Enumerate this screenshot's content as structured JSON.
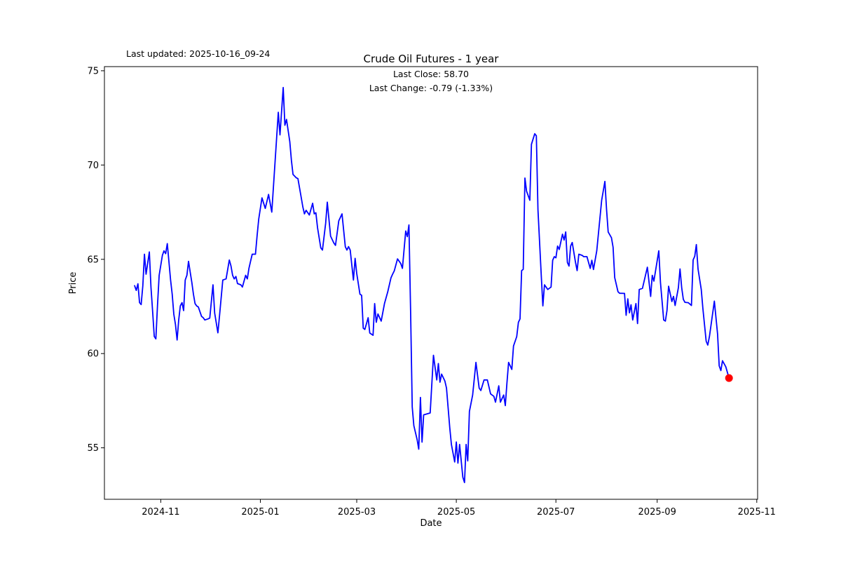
{
  "chart_data": {
    "type": "line",
    "title": "Crude Oil Futures - 1 year",
    "xlabel": "Date",
    "ylabel": "Price",
    "annotations": {
      "last_updated": "Last updated: 2025-10-16_09-24",
      "subtitle_line1": "Last Close: 58.70",
      "subtitle_line2": "Last Change: -0.79 (-1.33%)"
    },
    "last_close": 58.7,
    "last_change_abs": -0.79,
    "last_change_pct": "-1.33%",
    "line_color": "#0000ff",
    "marker_color": "#ff0000",
    "grid": false,
    "legend": null,
    "y_ticks": [
      55,
      60,
      65,
      70,
      75
    ],
    "x_ticks": [
      {
        "label": "2024-11",
        "date": "2024-11-01"
      },
      {
        "label": "2025-01",
        "date": "2025-01-01"
      },
      {
        "label": "2025-03",
        "date": "2025-03-01"
      },
      {
        "label": "2025-05",
        "date": "2025-05-01"
      },
      {
        "label": "2025-07",
        "date": "2025-07-01"
      },
      {
        "label": "2025-09",
        "date": "2025-09-01"
      },
      {
        "label": "2025-11",
        "date": "2025-11-01"
      }
    ],
    "xlim": [
      "2024-09-27",
      "2025-11-01"
    ],
    "ylim": [
      52.27,
      75.22
    ],
    "last_point": {
      "date": "2025-10-15",
      "value": 58.7
    },
    "series": [
      {
        "name": "Crude Oil Futures",
        "points": [
          [
            "2024-10-16",
            63.6
          ],
          [
            "2024-10-17",
            63.35
          ],
          [
            "2024-10-18",
            63.7
          ],
          [
            "2024-10-19",
            62.7
          ],
          [
            "2024-10-20",
            62.6
          ],
          [
            "2024-10-21",
            63.6
          ],
          [
            "2024-10-22",
            65.27
          ],
          [
            "2024-10-23",
            64.21
          ],
          [
            "2024-10-25",
            65.39
          ],
          [
            "2024-10-26",
            63.53
          ],
          [
            "2024-10-27",
            62.28
          ],
          [
            "2024-10-28",
            60.91
          ],
          [
            "2024-10-29",
            60.78
          ],
          [
            "2024-10-30",
            62.53
          ],
          [
            "2024-10-31",
            64.15
          ],
          [
            "2024-11-02",
            65.21
          ],
          [
            "2024-11-03",
            65.45
          ],
          [
            "2024-11-04",
            65.3
          ],
          [
            "2024-11-05",
            65.83
          ],
          [
            "2024-11-06",
            64.89
          ],
          [
            "2024-11-07",
            63.9
          ],
          [
            "2024-11-08",
            63.15
          ],
          [
            "2024-11-09",
            62.09
          ],
          [
            "2024-11-10",
            61.53
          ],
          [
            "2024-11-11",
            60.72
          ],
          [
            "2024-11-12",
            61.78
          ],
          [
            "2024-11-13",
            62.53
          ],
          [
            "2024-11-14",
            62.7
          ],
          [
            "2024-11-15",
            62.28
          ],
          [
            "2024-11-16",
            63.9
          ],
          [
            "2024-11-17",
            64.15
          ],
          [
            "2024-11-18",
            64.89
          ],
          [
            "2024-11-19",
            64.34
          ],
          [
            "2024-11-20",
            63.78
          ],
          [
            "2024-11-21",
            63.15
          ],
          [
            "2024-11-22",
            62.65
          ],
          [
            "2024-11-23",
            62.53
          ],
          [
            "2024-11-24",
            62.47
          ],
          [
            "2024-11-26",
            61.97
          ],
          [
            "2024-11-27",
            61.9
          ],
          [
            "2024-11-28",
            61.78
          ],
          [
            "2024-11-30",
            61.84
          ],
          [
            "2024-12-01",
            61.88
          ],
          [
            "2024-12-03",
            63.65
          ],
          [
            "2024-12-04",
            62.15
          ],
          [
            "2024-12-06",
            61.1
          ],
          [
            "2024-12-07",
            62.03
          ],
          [
            "2024-12-09",
            63.9
          ],
          [
            "2024-12-11",
            63.96
          ],
          [
            "2024-12-13",
            64.96
          ],
          [
            "2024-12-14",
            64.64
          ],
          [
            "2024-12-15",
            64.15
          ],
          [
            "2024-12-16",
            63.96
          ],
          [
            "2024-12-17",
            64.09
          ],
          [
            "2024-12-18",
            63.71
          ],
          [
            "2024-12-20",
            63.65
          ],
          [
            "2024-12-21",
            63.53
          ],
          [
            "2024-12-23",
            64.15
          ],
          [
            "2024-12-24",
            63.96
          ],
          [
            "2024-12-25",
            64.52
          ],
          [
            "2024-12-26",
            64.89
          ],
          [
            "2024-12-27",
            65.27
          ],
          [
            "2024-12-29",
            65.27
          ],
          [
            "2024-12-30",
            66.27
          ],
          [
            "2024-12-31",
            67.14
          ],
          [
            "2025-01-02",
            68.26
          ],
          [
            "2025-01-04",
            67.7
          ],
          [
            "2025-01-06",
            68.44
          ],
          [
            "2025-01-08",
            67.5
          ],
          [
            "2025-01-12",
            72.8
          ],
          [
            "2025-01-13",
            71.6
          ],
          [
            "2025-01-15",
            74.11
          ],
          [
            "2025-01-16",
            72.11
          ],
          [
            "2025-01-17",
            72.42
          ],
          [
            "2025-01-19",
            71.24
          ],
          [
            "2025-01-20",
            70.25
          ],
          [
            "2025-01-21",
            69.5
          ],
          [
            "2025-01-23",
            69.32
          ],
          [
            "2025-01-24",
            69.28
          ],
          [
            "2025-01-26",
            68.28
          ],
          [
            "2025-01-27",
            67.78
          ],
          [
            "2025-01-28",
            67.41
          ],
          [
            "2025-01-29",
            67.6
          ],
          [
            "2025-01-31",
            67.35
          ],
          [
            "2025-02-02",
            67.97
          ],
          [
            "2025-02-03",
            67.41
          ],
          [
            "2025-02-04",
            67.47
          ],
          [
            "2025-02-05",
            66.67
          ],
          [
            "2025-02-07",
            65.61
          ],
          [
            "2025-02-08",
            65.49
          ],
          [
            "2025-02-10",
            66.92
          ],
          [
            "2025-02-11",
            68.03
          ],
          [
            "2025-02-13",
            66.23
          ],
          [
            "2025-02-15",
            65.86
          ],
          [
            "2025-02-16",
            65.74
          ],
          [
            "2025-02-18",
            67.04
          ],
          [
            "2025-02-20",
            67.41
          ],
          [
            "2025-02-22",
            65.67
          ],
          [
            "2025-02-23",
            65.49
          ],
          [
            "2025-02-24",
            65.67
          ],
          [
            "2025-02-25",
            65.49
          ],
          [
            "2025-02-27",
            63.9
          ],
          [
            "2025-02-28",
            65.05
          ],
          [
            "2025-03-01",
            64.25
          ],
          [
            "2025-03-03",
            63.15
          ],
          [
            "2025-03-04",
            63.09
          ],
          [
            "2025-03-05",
            61.35
          ],
          [
            "2025-03-06",
            61.28
          ],
          [
            "2025-03-08",
            61.9
          ],
          [
            "2025-03-09",
            61.09
          ],
          [
            "2025-03-11",
            60.97
          ],
          [
            "2025-03-12",
            62.65
          ],
          [
            "2025-03-13",
            61.66
          ],
          [
            "2025-03-14",
            62.1
          ],
          [
            "2025-03-16",
            61.72
          ],
          [
            "2025-03-18",
            62.65
          ],
          [
            "2025-03-20",
            63.28
          ],
          [
            "2025-03-22",
            64.02
          ],
          [
            "2025-03-23",
            64.21
          ],
          [
            "2025-03-24",
            64.39
          ],
          [
            "2025-03-26",
            65.02
          ],
          [
            "2025-03-28",
            64.77
          ],
          [
            "2025-03-29",
            64.52
          ],
          [
            "2025-03-31",
            66.5
          ],
          [
            "2025-04-01",
            66.2
          ],
          [
            "2025-04-02",
            66.82
          ],
          [
            "2025-04-03",
            62.2
          ],
          [
            "2025-04-04",
            57.17
          ],
          [
            "2025-04-05",
            56.18
          ],
          [
            "2025-04-07",
            55.43
          ],
          [
            "2025-04-08",
            54.93
          ],
          [
            "2025-04-09",
            57.67
          ],
          [
            "2025-04-10",
            55.3
          ],
          [
            "2025-04-11",
            56.75
          ],
          [
            "2025-04-13",
            56.8
          ],
          [
            "2025-04-15",
            56.85
          ],
          [
            "2025-04-17",
            59.91
          ],
          [
            "2025-04-19",
            58.6
          ],
          [
            "2025-04-20",
            59.47
          ],
          [
            "2025-04-21",
            58.48
          ],
          [
            "2025-04-22",
            58.91
          ],
          [
            "2025-04-24",
            58.54
          ],
          [
            "2025-04-25",
            58.17
          ],
          [
            "2025-04-27",
            56.05
          ],
          [
            "2025-04-28",
            55.18
          ],
          [
            "2025-04-30",
            54.25
          ],
          [
            "2025-05-01",
            55.31
          ],
          [
            "2025-05-02",
            54.19
          ],
          [
            "2025-05-03",
            55.18
          ],
          [
            "2025-05-05",
            53.44
          ],
          [
            "2025-05-06",
            53.16
          ],
          [
            "2025-05-07",
            55.18
          ],
          [
            "2025-05-08",
            54.31
          ],
          [
            "2025-05-09",
            56.93
          ],
          [
            "2025-05-11",
            57.8
          ],
          [
            "2025-05-13",
            59.53
          ],
          [
            "2025-05-15",
            58.17
          ],
          [
            "2025-05-16",
            58.04
          ],
          [
            "2025-05-18",
            58.6
          ],
          [
            "2025-05-20",
            58.6
          ],
          [
            "2025-05-22",
            57.86
          ],
          [
            "2025-05-24",
            57.73
          ],
          [
            "2025-05-25",
            57.42
          ],
          [
            "2025-05-27",
            58.29
          ],
          [
            "2025-05-28",
            57.42
          ],
          [
            "2025-05-30",
            57.8
          ],
          [
            "2025-05-31",
            57.24
          ],
          [
            "2025-06-01",
            58.42
          ],
          [
            "2025-06-02",
            59.53
          ],
          [
            "2025-06-04",
            59.16
          ],
          [
            "2025-06-05",
            60.4
          ],
          [
            "2025-06-07",
            60.9
          ],
          [
            "2025-06-08",
            61.66
          ],
          [
            "2025-06-09",
            61.84
          ],
          [
            "2025-06-10",
            64.4
          ],
          [
            "2025-06-11",
            64.47
          ],
          [
            "2025-06-12",
            69.31
          ],
          [
            "2025-06-13",
            68.62
          ],
          [
            "2025-06-15",
            68.13
          ],
          [
            "2025-06-16",
            71.1
          ],
          [
            "2025-06-18",
            71.66
          ],
          [
            "2025-06-19",
            71.55
          ],
          [
            "2025-06-20",
            67.63
          ],
          [
            "2025-06-22",
            64.15
          ],
          [
            "2025-06-23",
            62.53
          ],
          [
            "2025-06-24",
            63.65
          ],
          [
            "2025-06-26",
            63.4
          ],
          [
            "2025-06-28",
            63.53
          ],
          [
            "2025-06-29",
            64.95
          ],
          [
            "2025-06-30",
            65.14
          ],
          [
            "2025-07-01",
            65.08
          ],
          [
            "2025-07-02",
            65.7
          ],
          [
            "2025-07-03",
            65.52
          ],
          [
            "2025-07-05",
            66.33
          ],
          [
            "2025-07-06",
            66.02
          ],
          [
            "2025-07-07",
            66.45
          ],
          [
            "2025-07-08",
            64.83
          ],
          [
            "2025-07-09",
            64.64
          ],
          [
            "2025-07-10",
            65.7
          ],
          [
            "2025-07-11",
            65.89
          ],
          [
            "2025-07-13",
            64.83
          ],
          [
            "2025-07-14",
            64.4
          ],
          [
            "2025-07-15",
            65.27
          ],
          [
            "2025-07-17",
            65.21
          ],
          [
            "2025-07-18",
            65.14
          ],
          [
            "2025-07-20",
            65.14
          ],
          [
            "2025-07-21",
            64.83
          ],
          [
            "2025-07-22",
            64.52
          ],
          [
            "2025-07-23",
            64.95
          ],
          [
            "2025-07-24",
            64.46
          ],
          [
            "2025-07-26",
            65.45
          ],
          [
            "2025-07-29",
            68.13
          ],
          [
            "2025-07-31",
            69.13
          ],
          [
            "2025-08-01",
            67.63
          ],
          [
            "2025-08-02",
            66.45
          ],
          [
            "2025-08-04",
            66.14
          ],
          [
            "2025-08-05",
            65.64
          ],
          [
            "2025-08-06",
            64.03
          ],
          [
            "2025-08-08",
            63.28
          ],
          [
            "2025-08-09",
            63.2
          ],
          [
            "2025-08-12",
            63.19
          ],
          [
            "2025-08-13",
            62.03
          ],
          [
            "2025-08-14",
            62.9
          ],
          [
            "2025-08-15",
            62.16
          ],
          [
            "2025-08-16",
            62.59
          ],
          [
            "2025-08-17",
            61.78
          ],
          [
            "2025-08-19",
            62.65
          ],
          [
            "2025-08-20",
            61.59
          ],
          [
            "2025-08-21",
            63.4
          ],
          [
            "2025-08-23",
            63.46
          ],
          [
            "2025-08-26",
            64.58
          ],
          [
            "2025-08-28",
            63.03
          ],
          [
            "2025-08-29",
            64.15
          ],
          [
            "2025-08-30",
            63.84
          ],
          [
            "2025-09-02",
            65.45
          ],
          [
            "2025-09-03",
            63.77
          ],
          [
            "2025-09-05",
            61.78
          ],
          [
            "2025-09-06",
            61.72
          ],
          [
            "2025-09-07",
            62.28
          ],
          [
            "2025-09-08",
            63.57
          ],
          [
            "2025-09-10",
            62.76
          ],
          [
            "2025-09-11",
            63.03
          ],
          [
            "2025-09-12",
            62.55
          ],
          [
            "2025-09-14",
            63.5
          ],
          [
            "2025-09-15",
            64.49
          ],
          [
            "2025-09-16",
            63.49
          ],
          [
            "2025-09-17",
            62.88
          ],
          [
            "2025-09-18",
            62.72
          ],
          [
            "2025-09-20",
            62.7
          ],
          [
            "2025-09-22",
            62.55
          ],
          [
            "2025-09-23",
            64.97
          ],
          [
            "2025-09-24",
            65.16
          ],
          [
            "2025-09-25",
            65.78
          ],
          [
            "2025-09-26",
            64.49
          ],
          [
            "2025-09-28",
            63.4
          ],
          [
            "2025-09-29",
            62.4
          ],
          [
            "2025-10-01",
            60.66
          ],
          [
            "2025-10-02",
            60.45
          ],
          [
            "2025-10-03",
            60.91
          ],
          [
            "2025-10-06",
            62.78
          ],
          [
            "2025-10-08",
            61.03
          ],
          [
            "2025-10-09",
            59.35
          ],
          [
            "2025-10-10",
            59.1
          ],
          [
            "2025-10-11",
            59.62
          ],
          [
            "2025-10-13",
            59.3
          ],
          [
            "2025-10-15",
            58.7
          ]
        ]
      }
    ]
  }
}
